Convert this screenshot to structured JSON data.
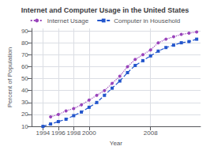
{
  "chart_data": {
    "type": "line",
    "title": "Internet and Computer Usage in the United States",
    "xlabel": "Year",
    "ylabel": "Percent of Population",
    "xlim": [
      1992.5,
      2014.5
    ],
    "xticks": [
      1994,
      1996,
      1998,
      2000,
      2008
    ],
    "ylim": [
      10,
      92
    ],
    "yticks": [
      10,
      20,
      30,
      40,
      50,
      60,
      70,
      80,
      90
    ],
    "grid": true,
    "legend": "top",
    "series": [
      {
        "name": "Internet Usage",
        "color": "#9944bb",
        "line_style": "dotted",
        "marker": "circle",
        "x": [
          1995,
          1996,
          1997,
          1998,
          1999,
          2000,
          2001,
          2002,
          2003,
          2004,
          2005,
          2006,
          2007,
          2008,
          2009,
          2010,
          2011,
          2012,
          2013,
          2014
        ],
        "values": [
          18,
          20,
          23,
          25,
          28,
          32,
          36,
          40,
          46,
          52,
          60,
          66,
          70,
          74,
          80,
          83,
          85,
          87,
          88,
          89
        ]
      },
      {
        "name": "Computer in Household",
        "color": "#2255cc",
        "line_style": "dashed",
        "marker": "square",
        "x": [
          1994,
          1995,
          1996,
          1997,
          1998,
          1999,
          2000,
          2001,
          2002,
          2003,
          2004,
          2005,
          2006,
          2007,
          2008,
          2009,
          2010,
          2011,
          2012,
          2013,
          2014
        ],
        "values": [
          10,
          12,
          14,
          16,
          19,
          22,
          26,
          30,
          36,
          42,
          48,
          55,
          61,
          65,
          69,
          73,
          76,
          78,
          80,
          81,
          83
        ]
      }
    ]
  }
}
